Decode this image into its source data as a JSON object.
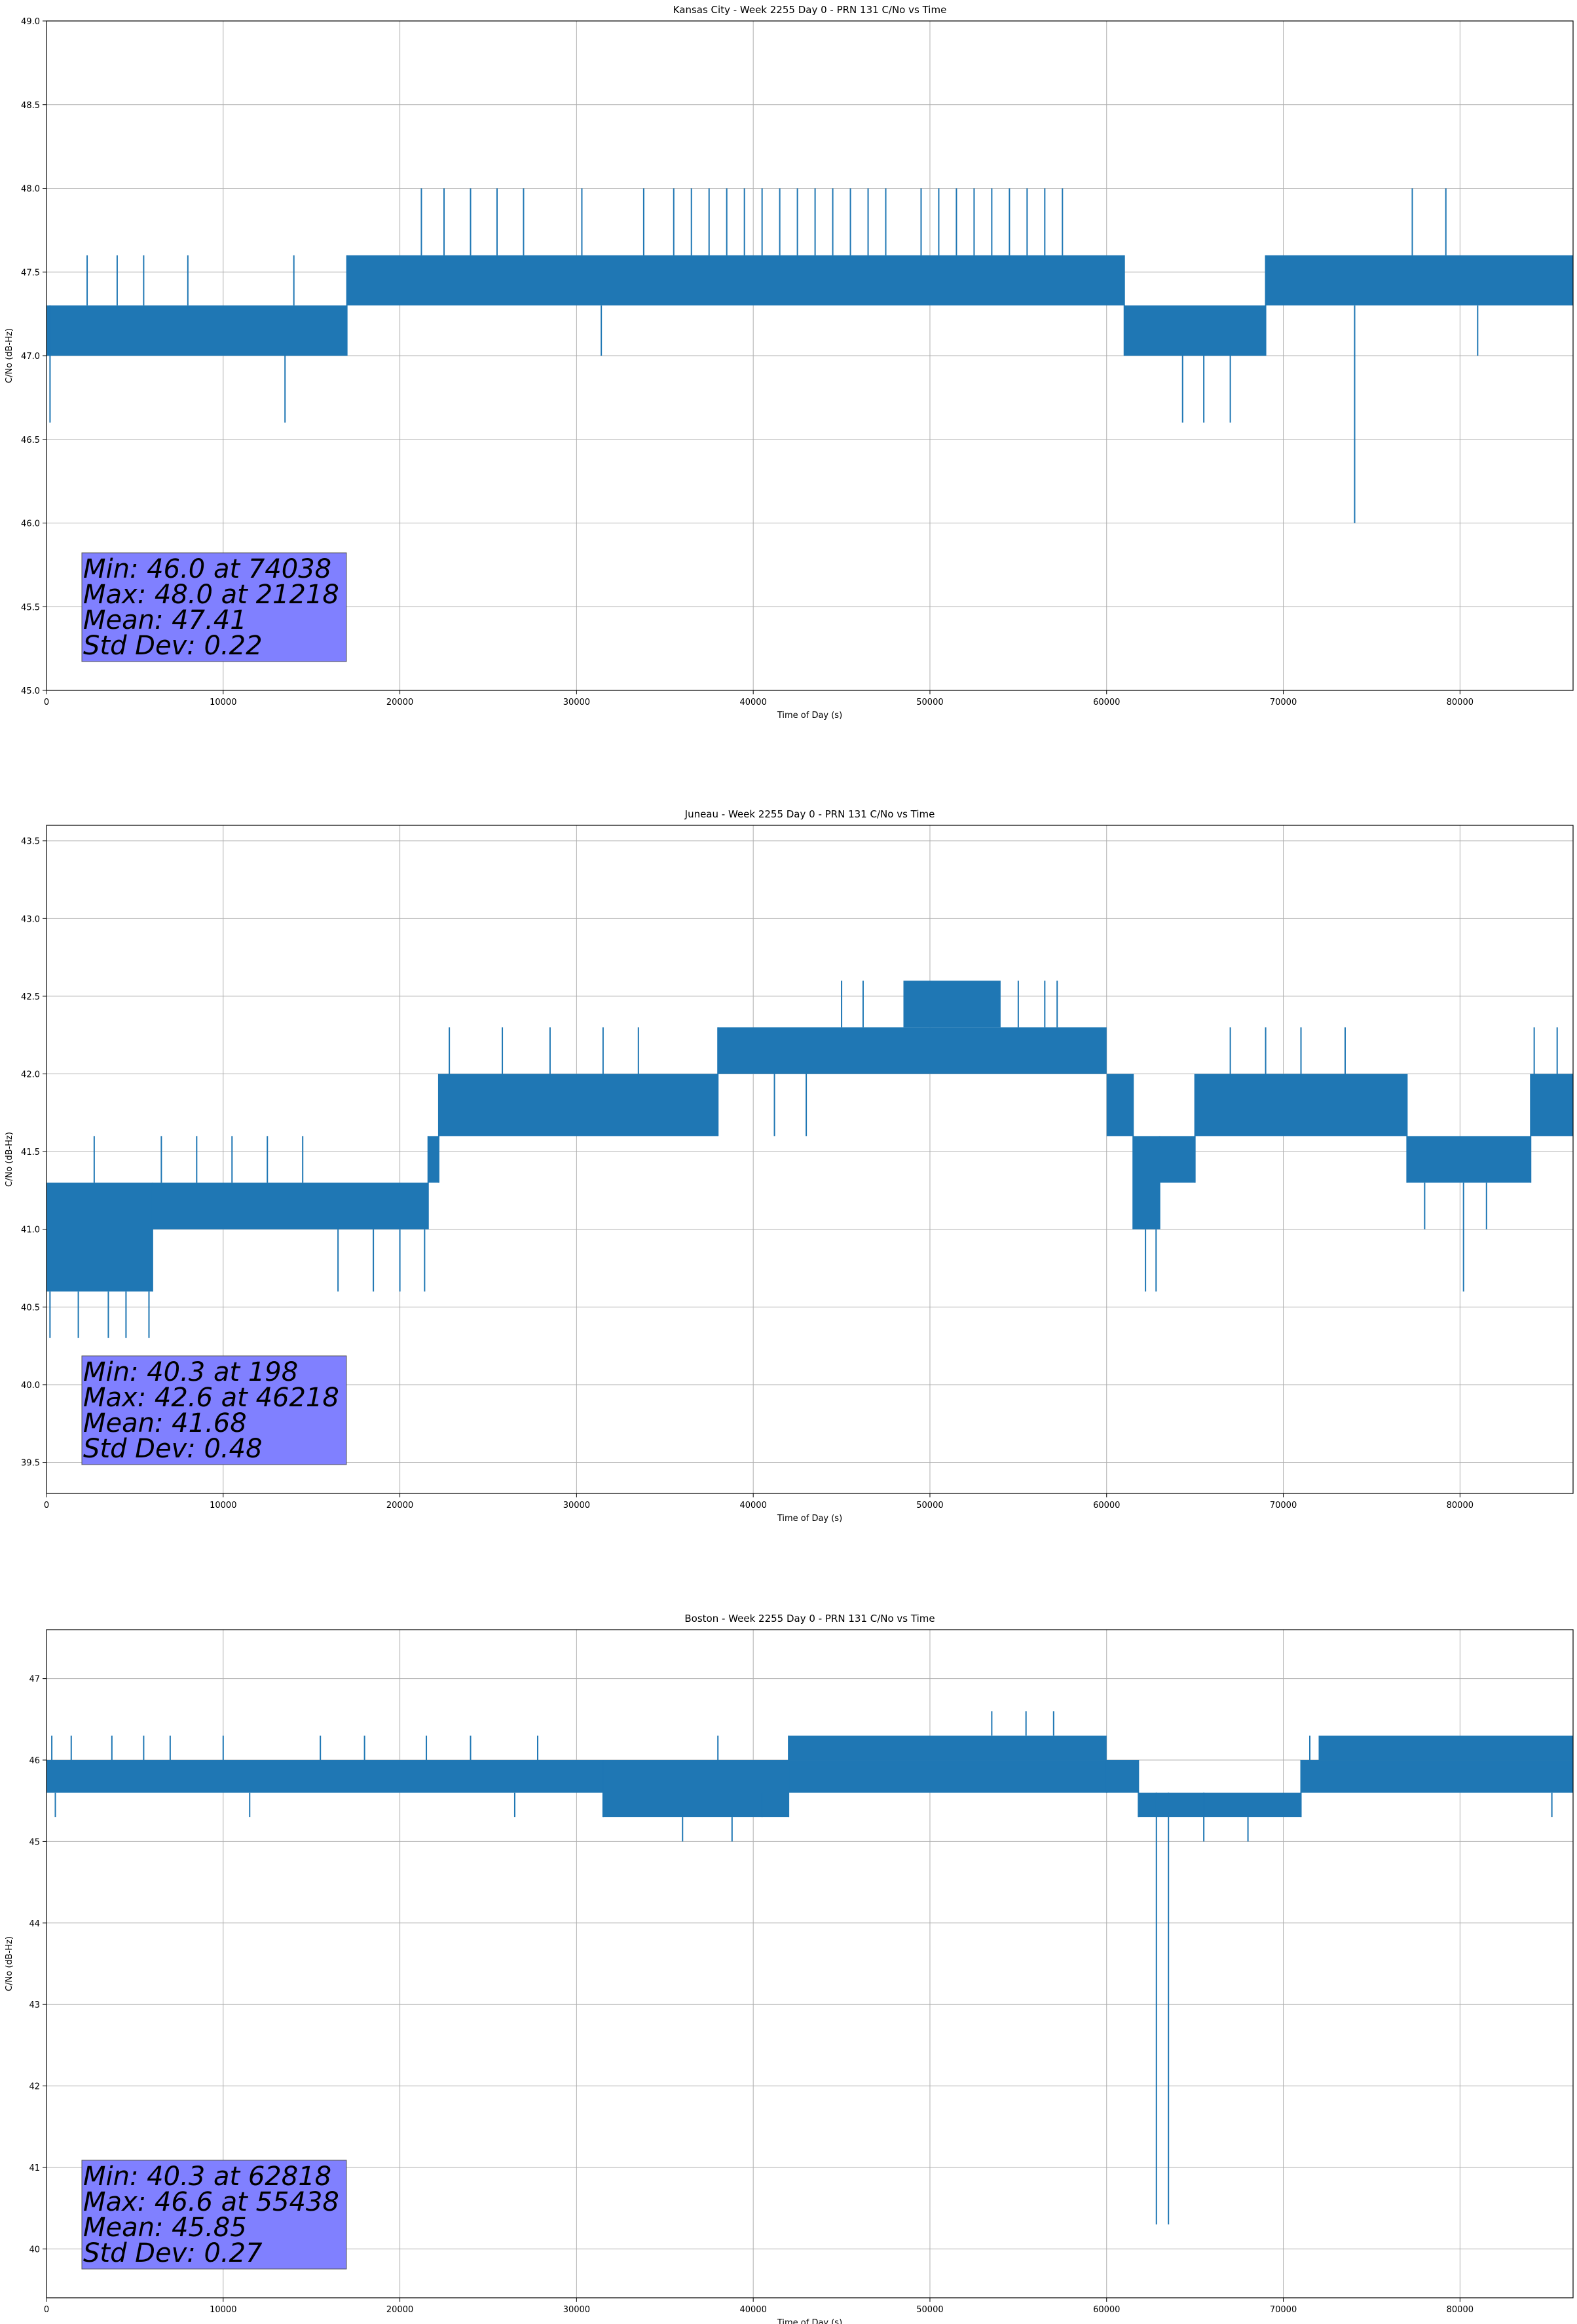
{
  "chart_data": [
    {
      "type": "line",
      "title": "Kansas City - Week 2255 Day 0 - PRN 131 C/No vs Time",
      "xlabel": "Time of Day (s)",
      "ylabel": "C/No (dB-Hz)",
      "xlim": [
        0,
        86400
      ],
      "ylim": [
        45.0,
        49.0
      ],
      "xticks": [
        0,
        10000,
        20000,
        30000,
        40000,
        50000,
        60000,
        70000,
        80000
      ],
      "yticks": [
        45.0,
        45.5,
        46.0,
        46.5,
        47.0,
        47.5,
        48.0,
        48.5,
        49.0
      ],
      "ytick_format": 1,
      "grid": true,
      "stats": [
        "Min: 46.0 at 74038",
        "Max: 48.0 at 21218",
        "Mean: 47.41",
        "Std Dev: 0.22"
      ],
      "bands": [
        {
          "x0": 0,
          "x1": 17000,
          "lo": 47.0,
          "hi": 47.3
        },
        {
          "x0": 17000,
          "x1": 61000,
          "lo": 47.3,
          "hi": 47.6
        },
        {
          "x0": 61000,
          "x1": 69000,
          "lo": 47.0,
          "hi": 47.3
        },
        {
          "x0": 69000,
          "x1": 86400,
          "lo": 47.3,
          "hi": 47.6
        }
      ],
      "spikes": [
        [
          200,
          47.3,
          46.6
        ],
        [
          2300,
          47.3,
          47.6
        ],
        [
          4000,
          47.3,
          47.6
        ],
        [
          5500,
          47.3,
          47.6
        ],
        [
          8000,
          47.3,
          47.6
        ],
        [
          13500,
          47.0,
          46.6
        ],
        [
          14000,
          47.3,
          47.6
        ],
        [
          21218,
          47.6,
          48.0
        ],
        [
          22500,
          47.6,
          48.0
        ],
        [
          24000,
          47.6,
          48.0
        ],
        [
          25500,
          47.6,
          48.0
        ],
        [
          27000,
          47.6,
          48.0
        ],
        [
          30300,
          47.6,
          48.0
        ],
        [
          31400,
          47.3,
          47.0
        ],
        [
          33800,
          47.6,
          48.0
        ],
        [
          35500,
          47.6,
          48.0
        ],
        [
          36500,
          47.6,
          48.0
        ],
        [
          37500,
          47.6,
          48.0
        ],
        [
          38500,
          47.6,
          48.0
        ],
        [
          39500,
          47.6,
          48.0
        ],
        [
          40500,
          47.6,
          48.0
        ],
        [
          41500,
          47.6,
          48.0
        ],
        [
          42500,
          47.6,
          48.0
        ],
        [
          43500,
          47.6,
          48.0
        ],
        [
          44500,
          47.6,
          48.0
        ],
        [
          45500,
          47.6,
          48.0
        ],
        [
          46500,
          47.6,
          48.0
        ],
        [
          47500,
          47.6,
          48.0
        ],
        [
          49500,
          47.6,
          48.0
        ],
        [
          50500,
          47.6,
          48.0
        ],
        [
          51500,
          47.6,
          48.0
        ],
        [
          52500,
          47.6,
          48.0
        ],
        [
          53500,
          47.6,
          48.0
        ],
        [
          54500,
          47.6,
          48.0
        ],
        [
          55500,
          47.6,
          48.0
        ],
        [
          56500,
          47.6,
          48.0
        ],
        [
          57500,
          47.6,
          48.0
        ],
        [
          64300,
          47.0,
          46.6
        ],
        [
          65500,
          47.0,
          46.6
        ],
        [
          67000,
          47.0,
          46.6
        ],
        [
          74038,
          47.3,
          46.0
        ],
        [
          77300,
          47.6,
          48.0
        ],
        [
          79200,
          47.6,
          48.0
        ],
        [
          81000,
          47.3,
          47.0
        ]
      ]
    },
    {
      "type": "line",
      "title": "Juneau - Week 2255 Day 0 - PRN 131 C/No vs Time",
      "xlabel": "Time of Day (s)",
      "ylabel": "C/No (dB-Hz)",
      "xlim": [
        0,
        86400
      ],
      "ylim": [
        39.3,
        43.6
      ],
      "xticks": [
        0,
        10000,
        20000,
        30000,
        40000,
        50000,
        60000,
        70000,
        80000
      ],
      "yticks": [
        39.5,
        40.0,
        40.5,
        41.0,
        41.5,
        42.0,
        42.5,
        43.0,
        43.5
      ],
      "ytick_format": 1,
      "grid": true,
      "stats": [
        "Min: 40.3 at 198",
        "Max: 42.6 at 46218",
        "Mean: 41.68",
        "Std Dev: 0.48"
      ],
      "bands": [
        {
          "x0": 0,
          "x1": 6000,
          "lo": 40.6,
          "hi": 41.3
        },
        {
          "x0": 6000,
          "x1": 21600,
          "lo": 41.0,
          "hi": 41.3
        },
        {
          "x0": 21600,
          "x1": 22200,
          "lo": 41.3,
          "hi": 41.6
        },
        {
          "x0": 22200,
          "x1": 38000,
          "lo": 41.6,
          "hi": 42.0
        },
        {
          "x0": 38000,
          "x1": 60000,
          "lo": 42.0,
          "hi": 42.3
        },
        {
          "x0": 48500,
          "x1": 54000,
          "lo": 42.3,
          "hi": 42.6
        },
        {
          "x0": 60000,
          "x1": 61500,
          "lo": 41.6,
          "hi": 42.0
        },
        {
          "x0": 61500,
          "x1": 63000,
          "lo": 41.0,
          "hi": 41.6
        },
        {
          "x0": 63000,
          "x1": 65000,
          "lo": 41.3,
          "hi": 41.6
        },
        {
          "x0": 65000,
          "x1": 77000,
          "lo": 41.6,
          "hi": 42.0
        },
        {
          "x0": 77000,
          "x1": 84000,
          "lo": 41.3,
          "hi": 41.6
        },
        {
          "x0": 84000,
          "x1": 86400,
          "lo": 41.6,
          "hi": 42.0
        }
      ],
      "spikes": [
        [
          198,
          40.6,
          40.3
        ],
        [
          1800,
          40.6,
          40.3
        ],
        [
          2700,
          41.3,
          41.6
        ],
        [
          3500,
          40.6,
          40.3
        ],
        [
          4500,
          40.6,
          40.3
        ],
        [
          5800,
          40.6,
          40.3
        ],
        [
          6500,
          41.3,
          41.6
        ],
        [
          8500,
          41.3,
          41.6
        ],
        [
          10500,
          41.3,
          41.6
        ],
        [
          12500,
          41.3,
          41.6
        ],
        [
          14500,
          41.3,
          41.6
        ],
        [
          16500,
          41.0,
          40.6
        ],
        [
          18500,
          41.0,
          40.6
        ],
        [
          20000,
          41.0,
          40.6
        ],
        [
          21400,
          41.0,
          40.6
        ],
        [
          22800,
          42.0,
          42.3
        ],
        [
          25800,
          42.0,
          42.3
        ],
        [
          28500,
          42.0,
          42.3
        ],
        [
          31500,
          42.0,
          42.3
        ],
        [
          33500,
          42.0,
          42.3
        ],
        [
          41200,
          42.0,
          41.6
        ],
        [
          43000,
          42.0,
          41.6
        ],
        [
          45000,
          42.3,
          42.6
        ],
        [
          46218,
          42.3,
          42.6
        ],
        [
          55000,
          42.3,
          42.6
        ],
        [
          56500,
          42.3,
          42.6
        ],
        [
          57200,
          42.3,
          42.6
        ],
        [
          62200,
          41.0,
          40.6
        ],
        [
          62800,
          41.0,
          40.6
        ],
        [
          67000,
          42.0,
          42.3
        ],
        [
          69000,
          42.0,
          42.3
        ],
        [
          71000,
          42.0,
          42.3
        ],
        [
          73500,
          42.0,
          42.3
        ],
        [
          78000,
          41.3,
          41.0
        ],
        [
          80200,
          41.3,
          40.6
        ],
        [
          81500,
          41.3,
          41.0
        ],
        [
          84200,
          42.0,
          42.3
        ],
        [
          85500,
          42.0,
          42.3
        ]
      ]
    },
    {
      "type": "line",
      "title": "Boston - Week 2255 Day 0 - PRN 131 C/No vs Time",
      "xlabel": "Time of Day (s)",
      "ylabel": "C/No (dB-Hz)",
      "xlim": [
        0,
        86400
      ],
      "ylim": [
        39.4,
        47.6
      ],
      "xticks": [
        0,
        10000,
        20000,
        30000,
        40000,
        50000,
        60000,
        70000,
        80000
      ],
      "yticks": [
        40,
        41,
        42,
        43,
        44,
        45,
        46,
        47
      ],
      "ytick_format": 0,
      "grid": true,
      "stats": [
        "Min: 40.3 at 62818",
        "Max: 46.6 at 55438",
        "Mean: 45.85",
        "Std Dev: 0.27"
      ],
      "bands": [
        {
          "x0": 0,
          "x1": 31500,
          "lo": 45.6,
          "hi": 46.0
        },
        {
          "x0": 31500,
          "x1": 42000,
          "lo": 45.3,
          "hi": 46.0
        },
        {
          "x0": 42000,
          "x1": 60000,
          "lo": 46.0,
          "hi": 46.3
        },
        {
          "x0": 42000,
          "x1": 60000,
          "lo": 45.6,
          "hi": 46.0
        },
        {
          "x0": 60000,
          "x1": 61800,
          "lo": 45.6,
          "hi": 46.0
        },
        {
          "x0": 61800,
          "x1": 71000,
          "lo": 45.3,
          "hi": 45.6
        },
        {
          "x0": 71000,
          "x1": 86400,
          "lo": 45.6,
          "hi": 46.0
        },
        {
          "x0": 72000,
          "x1": 86400,
          "lo": 46.0,
          "hi": 46.3
        }
      ],
      "spikes": [
        [
          300,
          46.0,
          46.3
        ],
        [
          500,
          45.6,
          45.3
        ],
        [
          1400,
          46.0,
          46.3
        ],
        [
          3700,
          46.0,
          46.3
        ],
        [
          5500,
          46.0,
          46.3
        ],
        [
          7000,
          46.0,
          46.3
        ],
        [
          10000,
          46.0,
          46.3
        ],
        [
          11500,
          45.6,
          45.3
        ],
        [
          15500,
          46.0,
          46.3
        ],
        [
          18000,
          46.0,
          46.3
        ],
        [
          21500,
          46.0,
          46.3
        ],
        [
          24000,
          46.0,
          46.3
        ],
        [
          26500,
          45.6,
          45.3
        ],
        [
          27800,
          46.0,
          46.3
        ],
        [
          36000,
          45.3,
          45.0
        ],
        [
          38000,
          46.0,
          46.3
        ],
        [
          38800,
          45.3,
          45.0
        ],
        [
          40500,
          45.6,
          45.3
        ],
        [
          53500,
          46.3,
          46.6
        ],
        [
          55438,
          46.3,
          46.6
        ],
        [
          57000,
          46.3,
          46.6
        ],
        [
          62818,
          45.6,
          40.3
        ],
        [
          63500,
          45.6,
          40.3
        ],
        [
          65500,
          45.6,
          45.0
        ],
        [
          68000,
          45.3,
          45.0
        ],
        [
          71500,
          46.0,
          46.3
        ],
        [
          85200,
          45.6,
          45.3
        ]
      ]
    }
  ]
}
